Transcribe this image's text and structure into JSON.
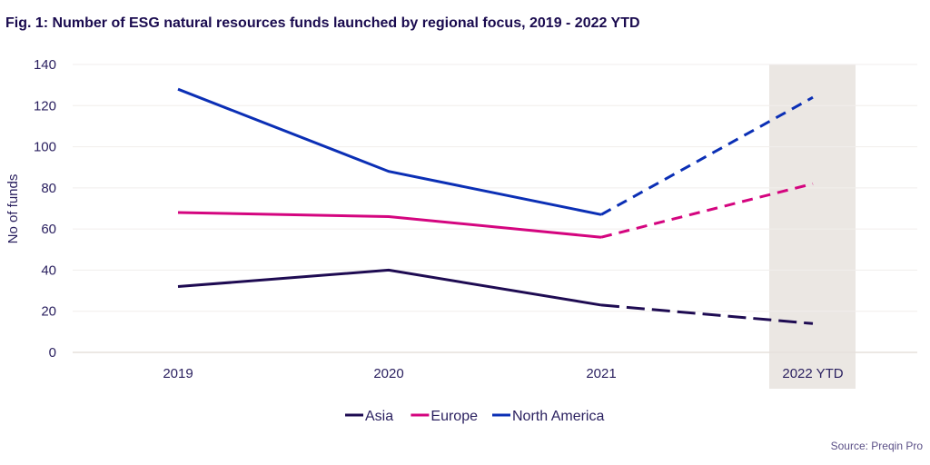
{
  "title": "Fig. 1: Number of ESG natural resources funds launched by regional focus, 2019 - 2022 YTD",
  "source": "Source: Preqin Pro",
  "chart_data": {
    "type": "line",
    "title": "Fig. 1: Number of ESG natural resources funds launched by regional focus, 2019 - 2022 YTD",
    "xlabel": "",
    "ylabel": "No of funds",
    "categories": [
      "2019",
      "2020",
      "2021",
      "2022 YTD"
    ],
    "ylim": [
      0,
      140
    ],
    "yticks": [
      0,
      20,
      40,
      60,
      80,
      100,
      120,
      140
    ],
    "grid": true,
    "legend": "bottom",
    "highlighted_category": "2022 YTD",
    "highlight_color": "#ebe7e3",
    "dashed_from": "2021",
    "series": [
      {
        "name": "Asia",
        "color": "#1e0b52",
        "values": [
          32,
          40,
          23,
          14
        ]
      },
      {
        "name": "Europe",
        "color": "#d4057f",
        "values": [
          68,
          66,
          56,
          82
        ]
      },
      {
        "name": "North America",
        "color": "#0b2fb5",
        "values": [
          128,
          88,
          67,
          124
        ]
      }
    ]
  }
}
